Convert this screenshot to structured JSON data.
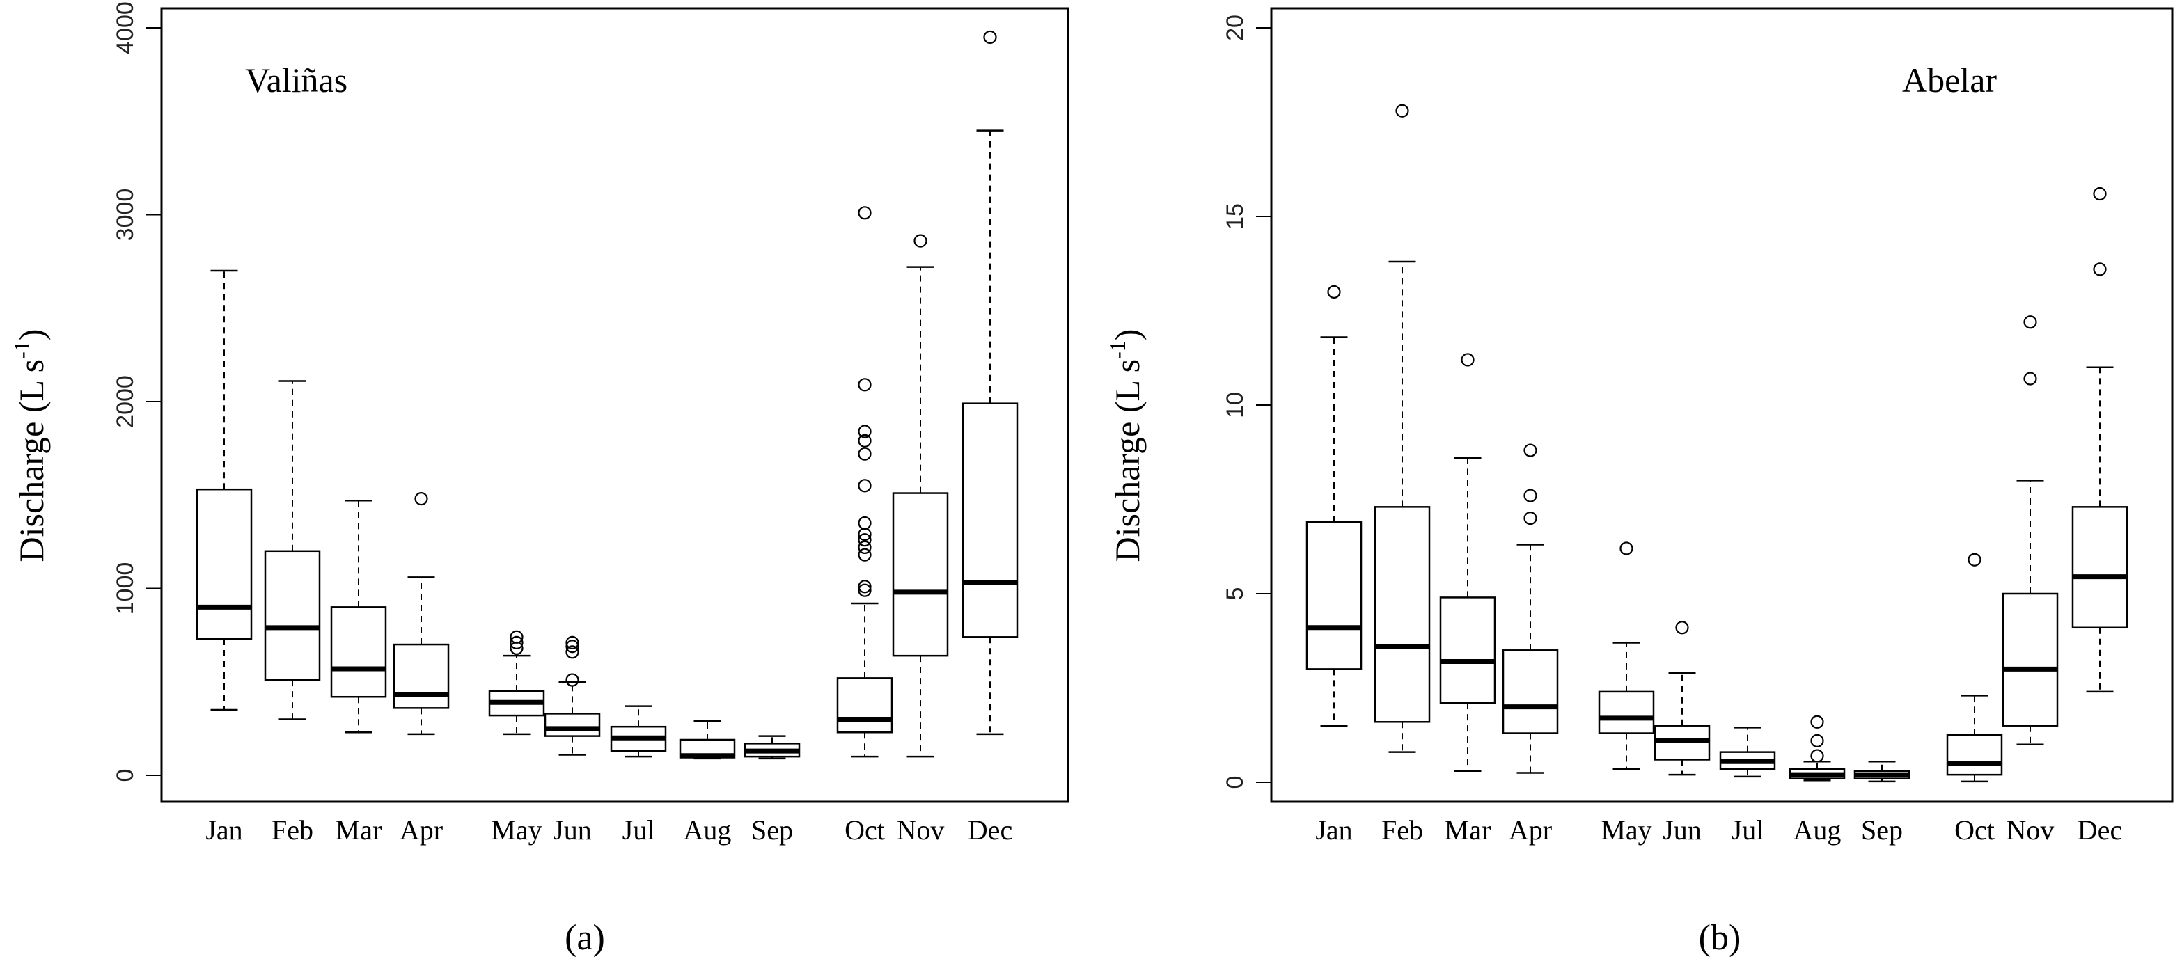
{
  "colors": {
    "line": "#000000",
    "background": "#ffffff"
  },
  "chart_data": [
    {
      "type": "box",
      "title": "Valiñas",
      "ylabel": "Discharge (L s",
      "ylabel_superscript": "-1",
      "ylabel_close": ")",
      "caption": "(a)",
      "ylim": [
        0,
        4000
      ],
      "yticks": [
        0,
        1000,
        2000,
        3000,
        4000
      ],
      "categories": [
        "Jan",
        "Feb",
        "Mar",
        "Apr",
        "May",
        "Jun",
        "Jul",
        "Aug",
        "Sep",
        "Oct",
        "Nov",
        "Dec"
      ],
      "boxes": [
        {
          "label": "Jan",
          "whisker_low": 350,
          "q1": 730,
          "median": 900,
          "q3": 1530,
          "whisker_high": 2700,
          "outliers": []
        },
        {
          "label": "Feb",
          "whisker_low": 300,
          "q1": 510,
          "median": 790,
          "q3": 1200,
          "whisker_high": 2110,
          "outliers": []
        },
        {
          "label": "Mar",
          "whisker_low": 230,
          "q1": 420,
          "median": 570,
          "q3": 900,
          "whisker_high": 1470,
          "outliers": []
        },
        {
          "label": "Apr",
          "whisker_low": 220,
          "q1": 360,
          "median": 430,
          "q3": 700,
          "whisker_high": 1060,
          "outliers": [
            1480
          ]
        },
        {
          "label": "May",
          "whisker_low": 220,
          "q1": 320,
          "median": 390,
          "q3": 450,
          "whisker_high": 640,
          "outliers": [
            680,
            710,
            740
          ]
        },
        {
          "label": "Jun",
          "whisker_low": 110,
          "q1": 210,
          "median": 250,
          "q3": 330,
          "whisker_high": 500,
          "outliers": [
            510,
            660,
            690,
            710
          ]
        },
        {
          "label": "Jul",
          "whisker_low": 100,
          "q1": 130,
          "median": 200,
          "q3": 260,
          "whisker_high": 370,
          "outliers": []
        },
        {
          "label": "Aug",
          "whisker_low": 90,
          "q1": 95,
          "median": 105,
          "q3": 190,
          "whisker_high": 290,
          "outliers": []
        },
        {
          "label": "Sep",
          "whisker_low": 90,
          "q1": 100,
          "median": 130,
          "q3": 170,
          "whisker_high": 210,
          "outliers": []
        },
        {
          "label": "Oct",
          "whisker_low": 100,
          "q1": 230,
          "median": 300,
          "q3": 520,
          "whisker_high": 920,
          "outliers": [
            990,
            1010,
            1180,
            1220,
            1260,
            1290,
            1350,
            1550,
            1720,
            1790,
            1840,
            2090,
            3010
          ]
        },
        {
          "label": "Nov",
          "whisker_low": 100,
          "q1": 640,
          "median": 980,
          "q3": 1510,
          "whisker_high": 2720,
          "outliers": [
            2860
          ]
        },
        {
          "label": "Dec",
          "whisker_low": 220,
          "q1": 740,
          "median": 1030,
          "q3": 1990,
          "whisker_high": 3450,
          "outliers": [
            3950
          ]
        }
      ]
    },
    {
      "type": "box",
      "title": "Abelar",
      "ylabel": "Discharge (L s",
      "ylabel_superscript": "-1",
      "ylabel_close": ")",
      "caption": "(b)",
      "ylim": [
        0,
        20
      ],
      "yticks": [
        0,
        5,
        10,
        15,
        20
      ],
      "categories": [
        "Jan",
        "Feb",
        "Mar",
        "Apr",
        "May",
        "Jun",
        "Jul",
        "Aug",
        "Sep",
        "Oct",
        "Nov",
        "Dec"
      ],
      "boxes": [
        {
          "label": "Jan",
          "whisker_low": 1.5,
          "q1": 3.0,
          "median": 4.1,
          "q3": 6.9,
          "whisker_high": 11.8,
          "outliers": [
            13.0
          ]
        },
        {
          "label": "Feb",
          "whisker_low": 0.8,
          "q1": 1.6,
          "median": 3.6,
          "q3": 7.3,
          "whisker_high": 13.8,
          "outliers": [
            17.8
          ]
        },
        {
          "label": "Mar",
          "whisker_low": 0.3,
          "q1": 2.1,
          "median": 3.2,
          "q3": 4.9,
          "whisker_high": 8.6,
          "outliers": [
            11.2
          ]
        },
        {
          "label": "Apr",
          "whisker_low": 0.25,
          "q1": 1.3,
          "median": 2.0,
          "q3": 3.5,
          "whisker_high": 6.3,
          "outliers": [
            7.0,
            7.6,
            8.8
          ]
        },
        {
          "label": "May",
          "whisker_low": 0.35,
          "q1": 1.3,
          "median": 1.7,
          "q3": 2.4,
          "whisker_high": 3.7,
          "outliers": [
            6.2
          ]
        },
        {
          "label": "Jun",
          "whisker_low": 0.2,
          "q1": 0.6,
          "median": 1.1,
          "q3": 1.5,
          "whisker_high": 2.9,
          "outliers": [
            4.1
          ]
        },
        {
          "label": "Jul",
          "whisker_low": 0.15,
          "q1": 0.35,
          "median": 0.55,
          "q3": 0.8,
          "whisker_high": 1.45,
          "outliers": []
        },
        {
          "label": "Aug",
          "whisker_low": 0.05,
          "q1": 0.1,
          "median": 0.2,
          "q3": 0.35,
          "whisker_high": 0.55,
          "outliers": [
            0.7,
            1.1,
            1.6
          ]
        },
        {
          "label": "Sep",
          "whisker_low": 0.02,
          "q1": 0.1,
          "median": 0.2,
          "q3": 0.3,
          "whisker_high": 0.55,
          "outliers": []
        },
        {
          "label": "Oct",
          "whisker_low": 0.02,
          "q1": 0.2,
          "median": 0.5,
          "q3": 1.25,
          "whisker_high": 2.3,
          "outliers": [
            5.9
          ]
        },
        {
          "label": "Nov",
          "whisker_low": 1.0,
          "q1": 1.5,
          "median": 3.0,
          "q3": 5.0,
          "whisker_high": 8.0,
          "outliers": [
            10.7,
            12.2
          ]
        },
        {
          "label": "Dec",
          "whisker_low": 2.4,
          "q1": 4.1,
          "median": 5.45,
          "q3": 7.3,
          "whisker_high": 11.0,
          "outliers": [
            13.6,
            15.6
          ]
        }
      ]
    }
  ]
}
